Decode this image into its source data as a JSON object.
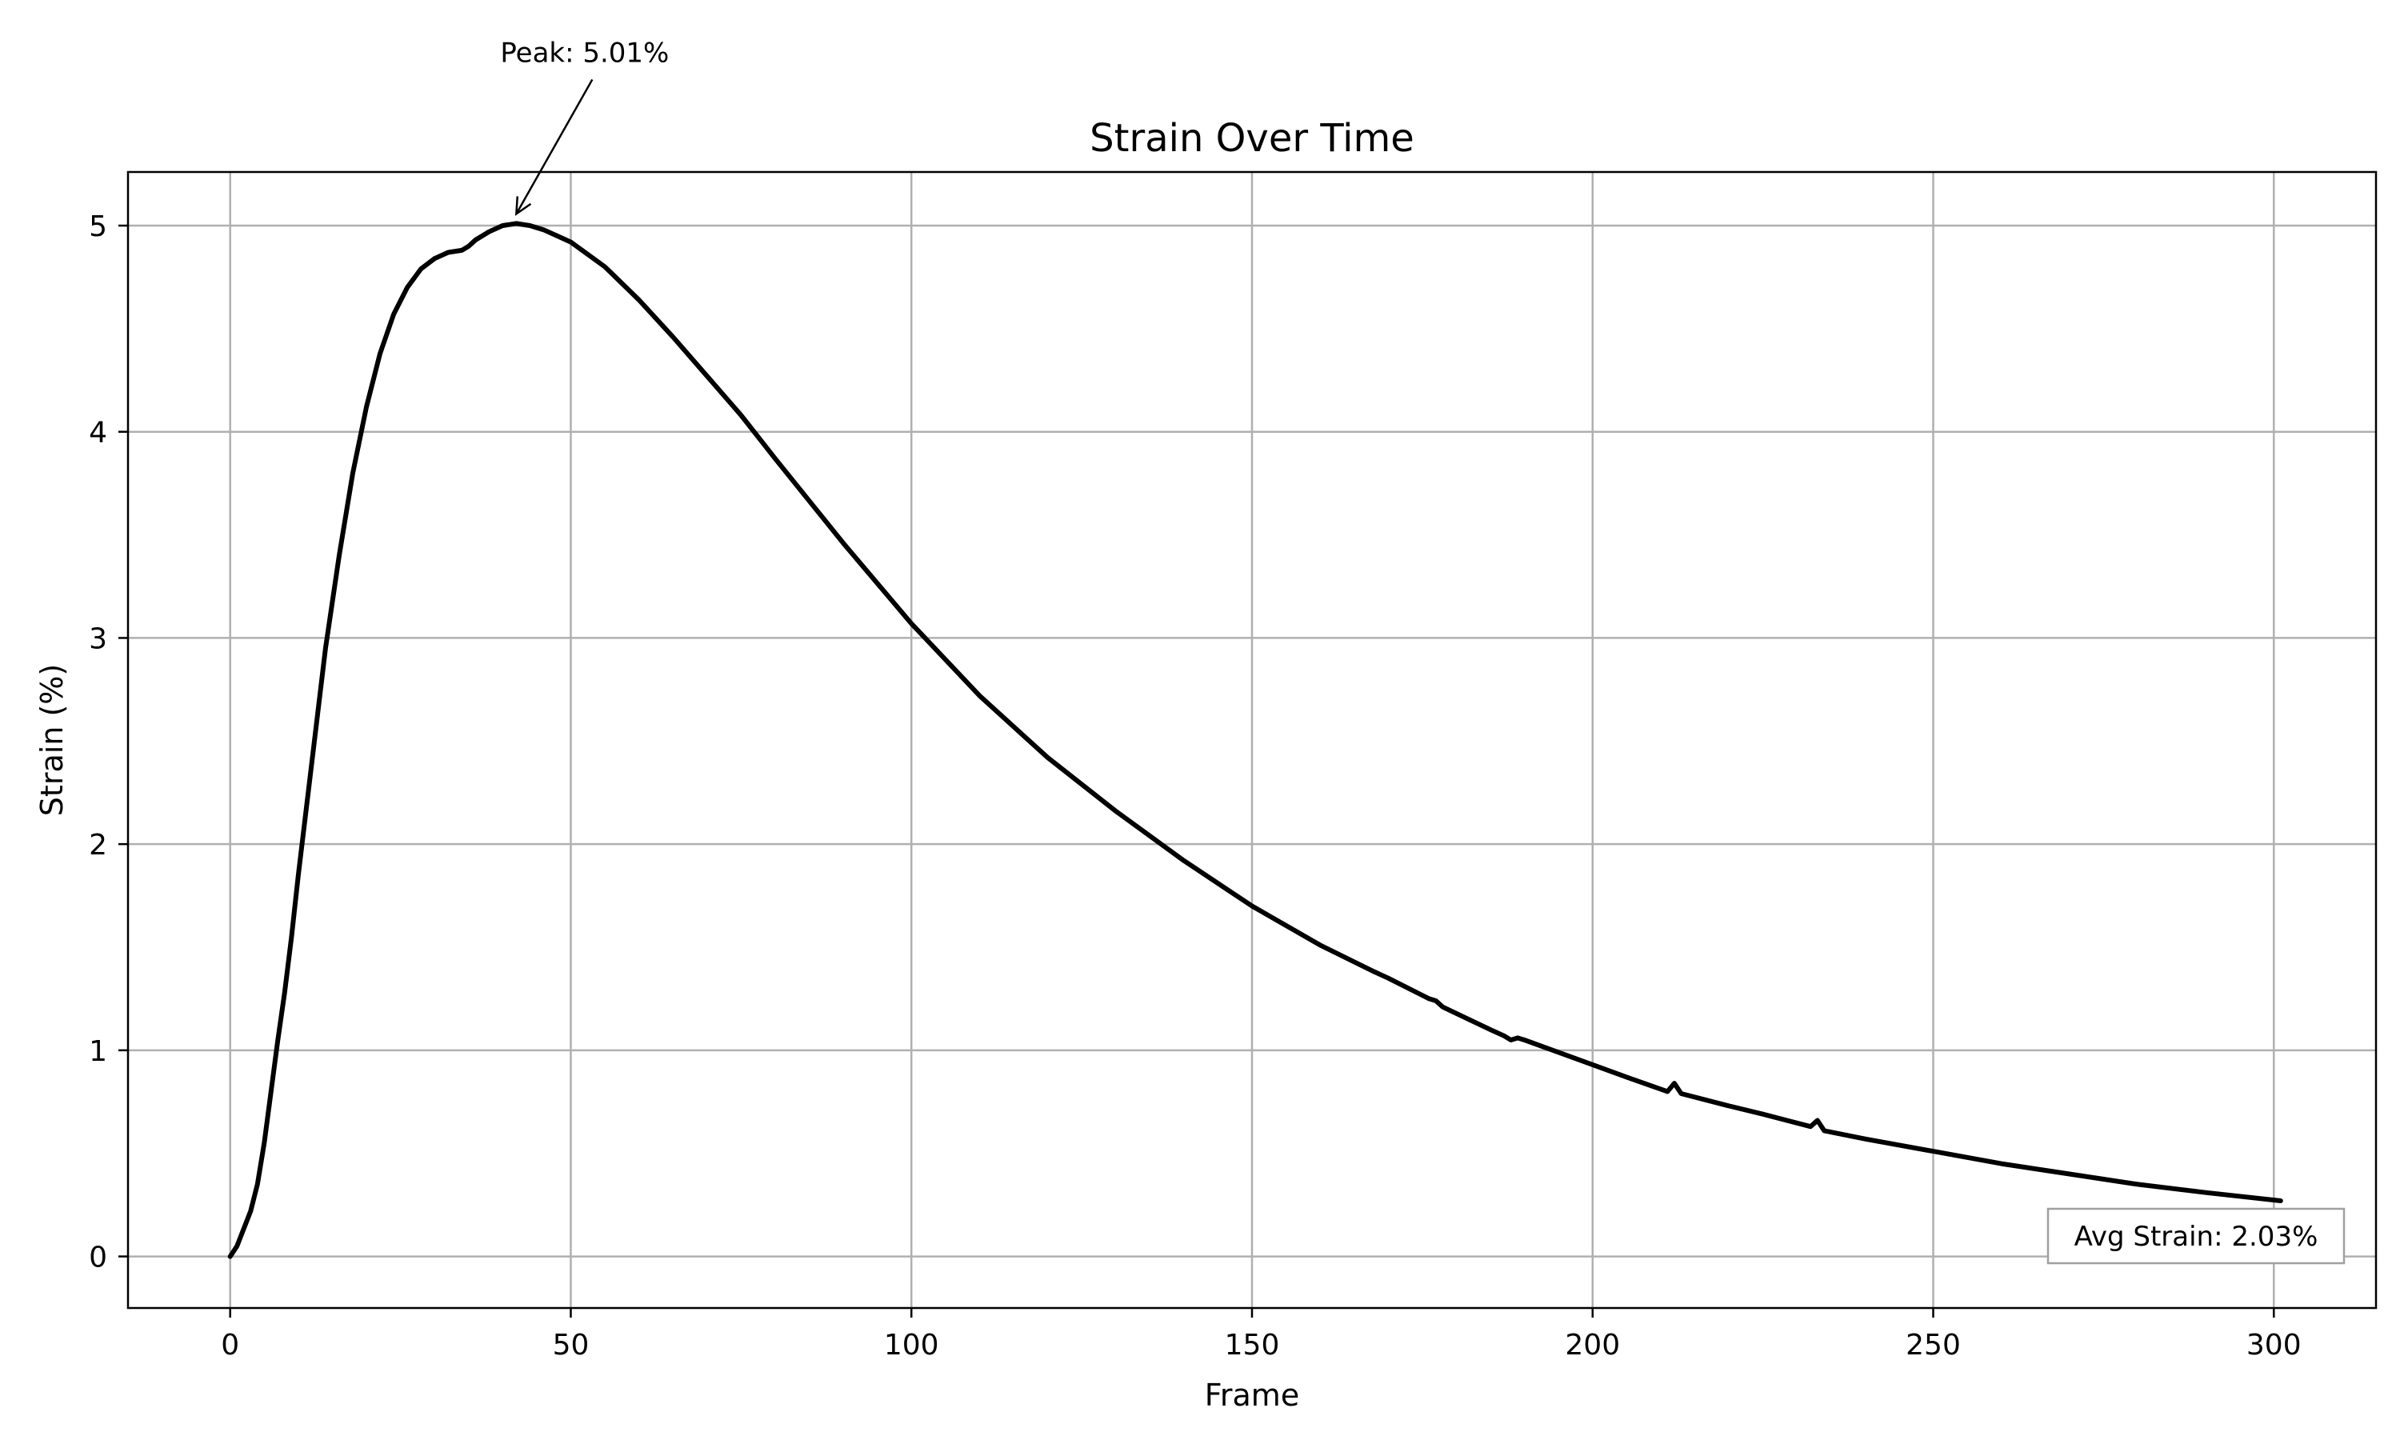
{
  "chart_data": {
    "type": "line",
    "title": "Strain Over Time",
    "xlabel": "Frame",
    "ylabel": "Strain (%)",
    "xlim": [
      -15,
      315
    ],
    "ylim": [
      -0.25,
      5.26
    ],
    "xticks": [
      0,
      50,
      100,
      150,
      200,
      250,
      300
    ],
    "yticks": [
      0,
      1,
      2,
      3,
      4,
      5
    ],
    "grid": true,
    "line_color": "#000000",
    "grid_color": "#b0b0b0",
    "series": [
      {
        "x": [
          0,
          1,
          3,
          4,
          5,
          6,
          7,
          8,
          9,
          10,
          12,
          14,
          16,
          18,
          20,
          22,
          24,
          26,
          28,
          30,
          32,
          34,
          35,
          36,
          38,
          40,
          42,
          44,
          46,
          48,
          50,
          55,
          60,
          65,
          70,
          75,
          80,
          90,
          100,
          110,
          120,
          130,
          140,
          150,
          160,
          168,
          170,
          176,
          177,
          178,
          185,
          187,
          188,
          189,
          190,
          195,
          200,
          205,
          211,
          212,
          213,
          220,
          225,
          232,
          233,
          234,
          240,
          250,
          260,
          270,
          280,
          290,
          301
        ],
        "y": [
          0,
          0.05,
          0.22,
          0.35,
          0.55,
          0.8,
          1.05,
          1.28,
          1.55,
          1.85,
          2.4,
          2.95,
          3.4,
          3.8,
          4.12,
          4.38,
          4.57,
          4.7,
          4.79,
          4.84,
          4.87,
          4.88,
          4.9,
          4.93,
          4.97,
          5.0,
          5.01,
          5.0,
          4.98,
          4.95,
          4.92,
          4.8,
          4.64,
          4.46,
          4.27,
          4.08,
          3.87,
          3.46,
          3.07,
          2.72,
          2.42,
          2.16,
          1.92,
          1.7,
          1.51,
          1.38,
          1.35,
          1.25,
          1.24,
          1.21,
          1.1,
          1.07,
          1.05,
          1.06,
          1.05,
          0.99,
          0.93,
          0.87,
          0.8,
          0.84,
          0.79,
          0.73,
          0.69,
          0.63,
          0.66,
          0.61,
          0.57,
          0.51,
          0.45,
          0.4,
          0.35,
          0.31,
          0.27
        ]
      }
    ],
    "annotations": {
      "peak": {
        "text": "Peak: 5.01%",
        "x": 42,
        "y": 5.01
      },
      "avg": {
        "text": "Avg Strain: 2.03%"
      }
    }
  }
}
